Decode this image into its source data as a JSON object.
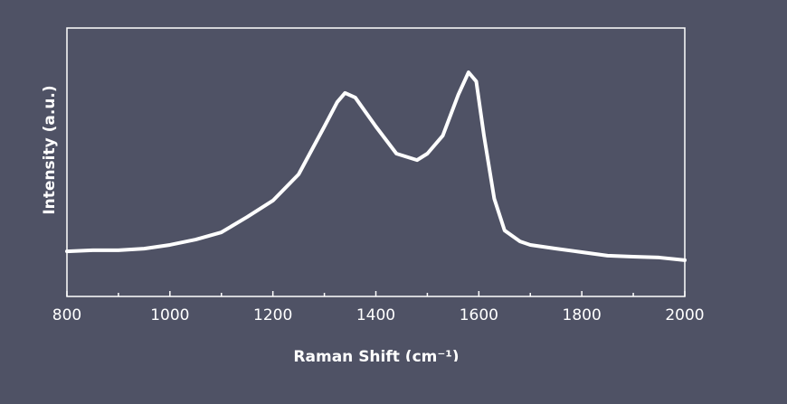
{
  "chart_data": {
    "type": "line",
    "xlabel": "Raman Shift (cm⁻¹)",
    "ylabel": "Intensity (a.u.)",
    "x": [
      800,
      850,
      900,
      950,
      1000,
      1050,
      1100,
      1150,
      1200,
      1250,
      1300,
      1325,
      1340,
      1360,
      1400,
      1440,
      1480,
      1500,
      1530,
      1560,
      1580,
      1595,
      1610,
      1630,
      1650,
      1680,
      1700,
      1750,
      1800,
      1850,
      1900,
      1950,
      2000
    ],
    "series": [
      {
        "color": "#ffffff",
        "values": [
          16.8,
          17.2,
          17.2,
          17.8,
          19.2,
          21.2,
          23.9,
          29.6,
          35.7,
          45.5,
          63.3,
          72.4,
          75.8,
          74.1,
          63.3,
          53.2,
          50.8,
          53.2,
          59.9,
          75.1,
          83.5,
          80.1,
          59.9,
          36.4,
          24.6,
          20.5,
          19.2,
          17.8,
          16.5,
          15.2,
          14.8,
          14.5,
          13.5
        ]
      }
    ],
    "xlim": [
      800,
      2000
    ],
    "ylim": [
      0,
      100
    ],
    "xticks": [
      800,
      1000,
      1200,
      1400,
      1600,
      1800,
      2000
    ],
    "xminor_ticks": [
      900,
      1100,
      1300,
      1500,
      1700,
      1900
    ]
  }
}
